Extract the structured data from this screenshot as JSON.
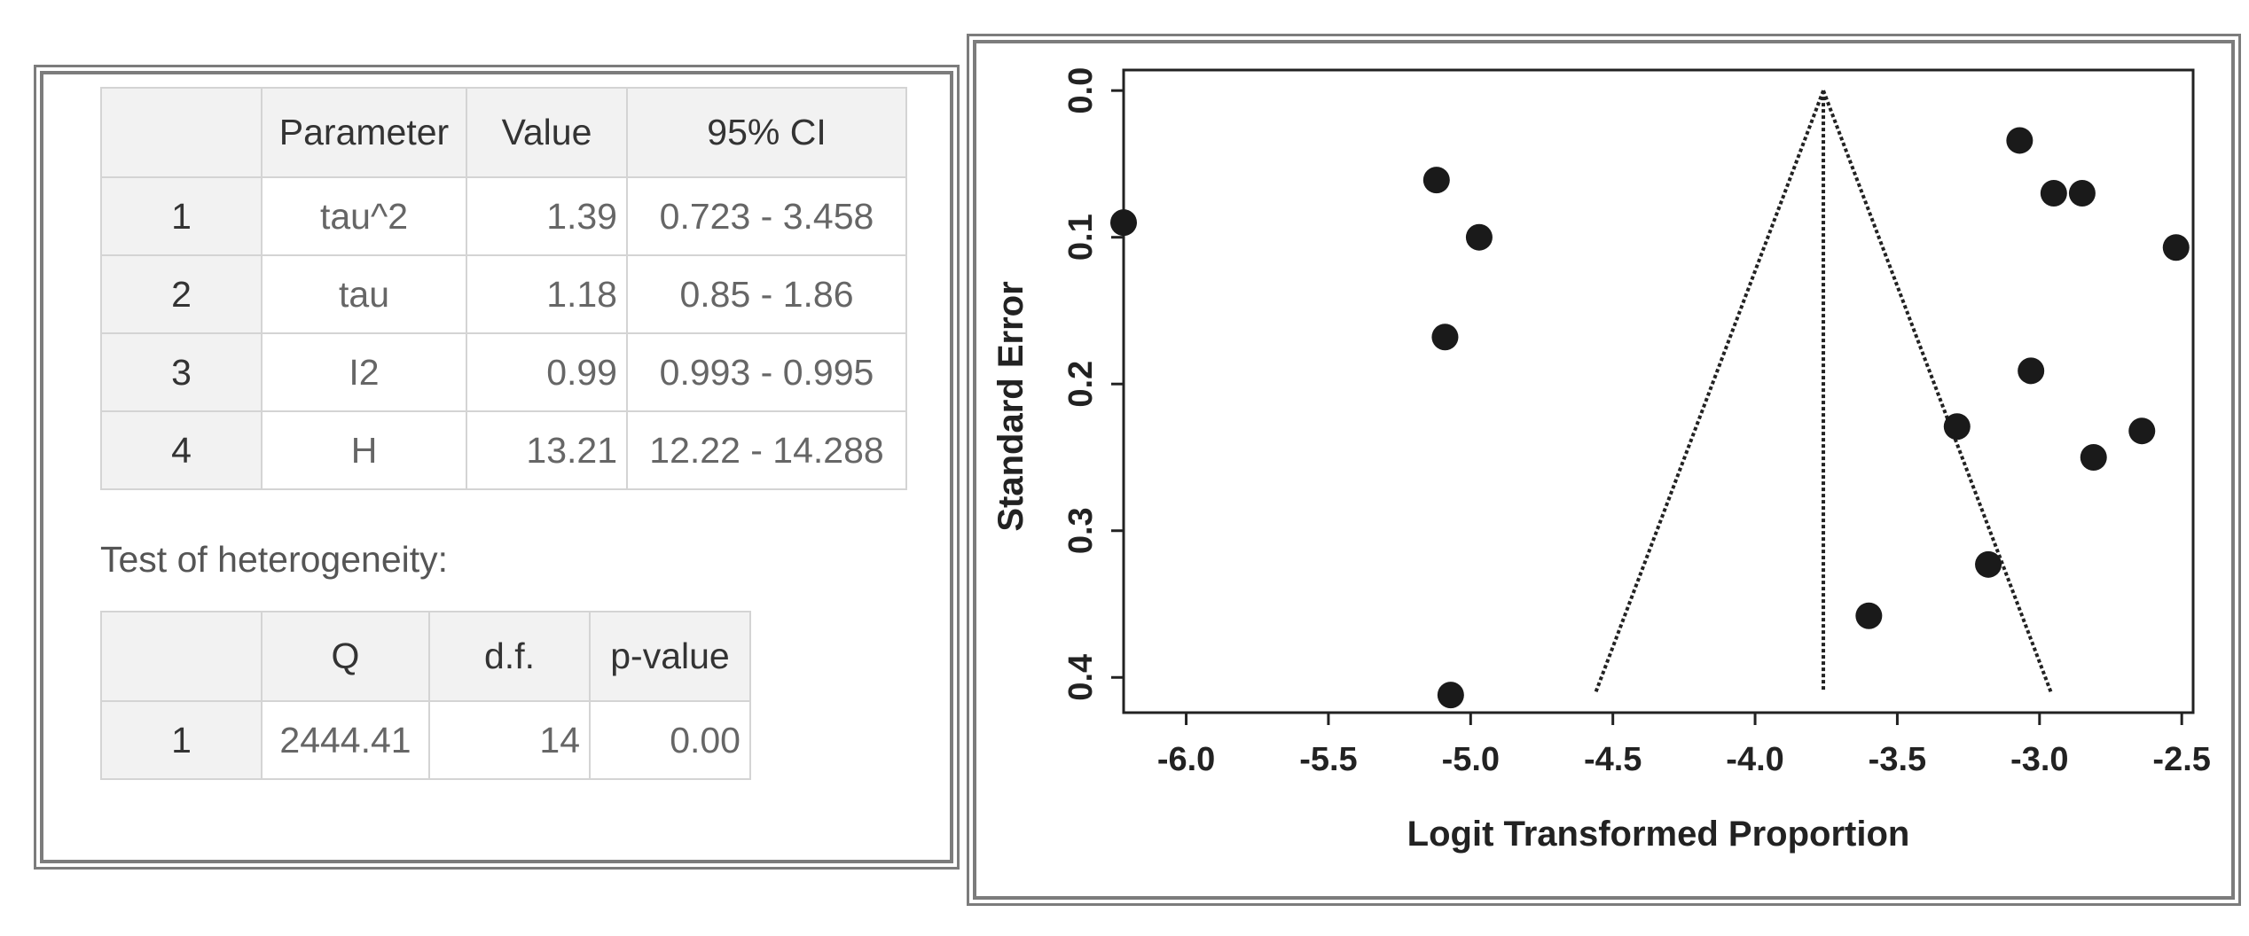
{
  "parameter_table": {
    "headers": [
      "",
      "Parameter",
      "Value",
      "95% CI"
    ],
    "rows": [
      [
        "1",
        "tau^2",
        "1.39",
        "0.723 - 3.458"
      ],
      [
        "2",
        "tau",
        "1.18",
        "0.85 - 1.86"
      ],
      [
        "3",
        "I2",
        "0.99",
        "0.993 - 0.995"
      ],
      [
        "4",
        "H",
        "13.21",
        "12.22 - 14.288"
      ]
    ]
  },
  "heterogeneity_label": "Test of heterogeneity:",
  "heterogeneity_table": {
    "headers": [
      "",
      "Q",
      "d.f.",
      "p-value"
    ],
    "rows": [
      [
        "1",
        "2444.41",
        "14",
        "0.00"
      ]
    ]
  },
  "chart_data": {
    "type": "scatter",
    "title": "",
    "xlabel": "Logit Transformed Proportion",
    "ylabel": "Standard Error",
    "xlim": [
      -6.22,
      -2.46
    ],
    "ylim": [
      0.424,
      -0.014
    ],
    "y_axis_inverted": true,
    "x_ticks": [
      -6.0,
      -5.5,
      -5.0,
      -4.5,
      -4.0,
      -3.5,
      -3.0,
      -2.5
    ],
    "x_tick_labels": [
      "-6.0",
      "-5.5",
      "-5.0",
      "-4.5",
      "-4.0",
      "-3.5",
      "-3.0",
      "-2.5"
    ],
    "y_ticks": [
      0.0,
      0.1,
      0.2,
      0.3,
      0.4
    ],
    "y_tick_labels": [
      "0.0",
      "0.1",
      "0.2",
      "0.3",
      "0.4"
    ],
    "grid": false,
    "points": [
      {
        "x": -6.22,
        "y": 0.09
      },
      {
        "x": -5.12,
        "y": 0.061
      },
      {
        "x": -4.97,
        "y": 0.1
      },
      {
        "x": -5.09,
        "y": 0.168
      },
      {
        "x": -5.07,
        "y": 0.412
      },
      {
        "x": -3.07,
        "y": 0.034
      },
      {
        "x": -2.95,
        "y": 0.07
      },
      {
        "x": -2.85,
        "y": 0.07
      },
      {
        "x": -2.52,
        "y": 0.107
      },
      {
        "x": -3.03,
        "y": 0.191
      },
      {
        "x": -3.29,
        "y": 0.229
      },
      {
        "x": -2.64,
        "y": 0.232
      },
      {
        "x": -2.81,
        "y": 0.25
      },
      {
        "x": -3.18,
        "y": 0.323
      },
      {
        "x": -3.6,
        "y": 0.358
      }
    ],
    "pooled_estimate": -3.76,
    "funnel_lines": [
      {
        "x": [
          -3.76,
          -4.56
        ],
        "y": [
          0.0,
          0.41
        ]
      },
      {
        "x": [
          -3.76,
          -2.96
        ],
        "y": [
          0.0,
          0.41
        ]
      }
    ],
    "vertical_line": {
      "x": -3.76,
      "y": [
        0.0,
        0.41
      ]
    },
    "point_color": "#1a1a1a",
    "line_color": "#222222"
  }
}
